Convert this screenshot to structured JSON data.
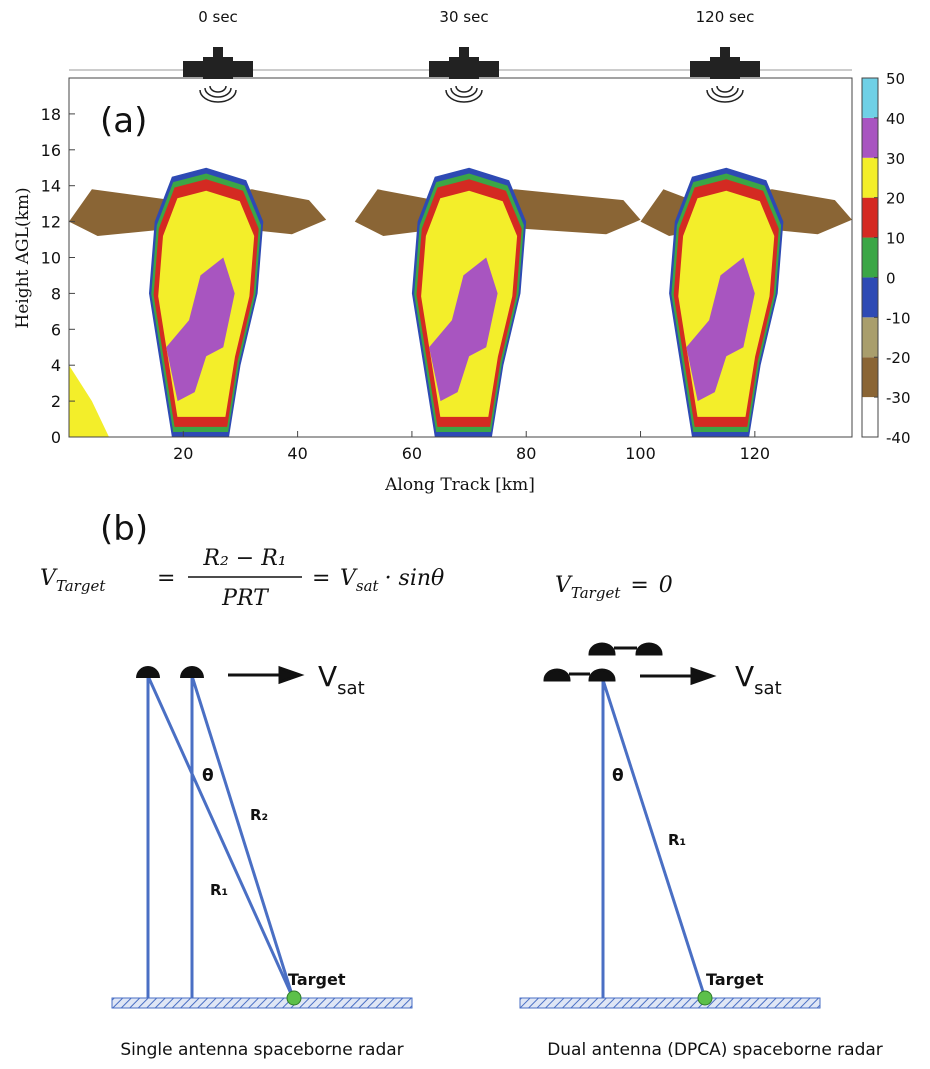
{
  "chart_data": {
    "type": "heatmap",
    "title": "(a)",
    "x_label": "Along Track [km]",
    "y_label": "Height AGL(km)",
    "time_labels": [
      "0 sec",
      "30 sec",
      "120 sec"
    ],
    "xlim": [
      0,
      137
    ],
    "xticks": [
      20,
      40,
      60,
      80,
      100,
      120
    ],
    "ylim": [
      0,
      20
    ],
    "yticks": [
      0,
      2,
      4,
      6,
      8,
      10,
      12,
      14,
      16,
      18
    ],
    "colorbar": {
      "lim": [
        -40,
        50
      ],
      "ticks": [
        -40,
        -30,
        -20,
        -10,
        0,
        10,
        20,
        30,
        40,
        50
      ],
      "colors": [
        "#ffffff",
        "#8a6535",
        "#a99e6c",
        "#2e4ab4",
        "#3ba646",
        "#d42a22",
        "#f3ee2a",
        "#a855c0",
        "#6fd0e6"
      ]
    }
  },
  "diagram": {
    "label": "(b)",
    "left": {
      "lhs": "V",
      "lhs_sub": "Target",
      "equals": "=",
      "numerator": "R₂ − R₁",
      "denominator": "PRT",
      "rhs": "V",
      "rhs_sub": "sat",
      "rhs_tail": "· sinθ",
      "velocity": "V",
      "velocity_sub": "sat",
      "angle": "θ",
      "range_2": "R₂",
      "range_1": "R₁",
      "target": "Target",
      "caption": "Single antenna spaceborne radar"
    },
    "right": {
      "lhs": "V",
      "lhs_sub": "Target",
      "equals": "=",
      "rhs": "0",
      "velocity": "V",
      "velocity_sub": "sat",
      "angle": "θ",
      "range_1": "R₁",
      "target": "Target",
      "caption": "Dual antenna (DPCA) spaceborne radar"
    }
  }
}
